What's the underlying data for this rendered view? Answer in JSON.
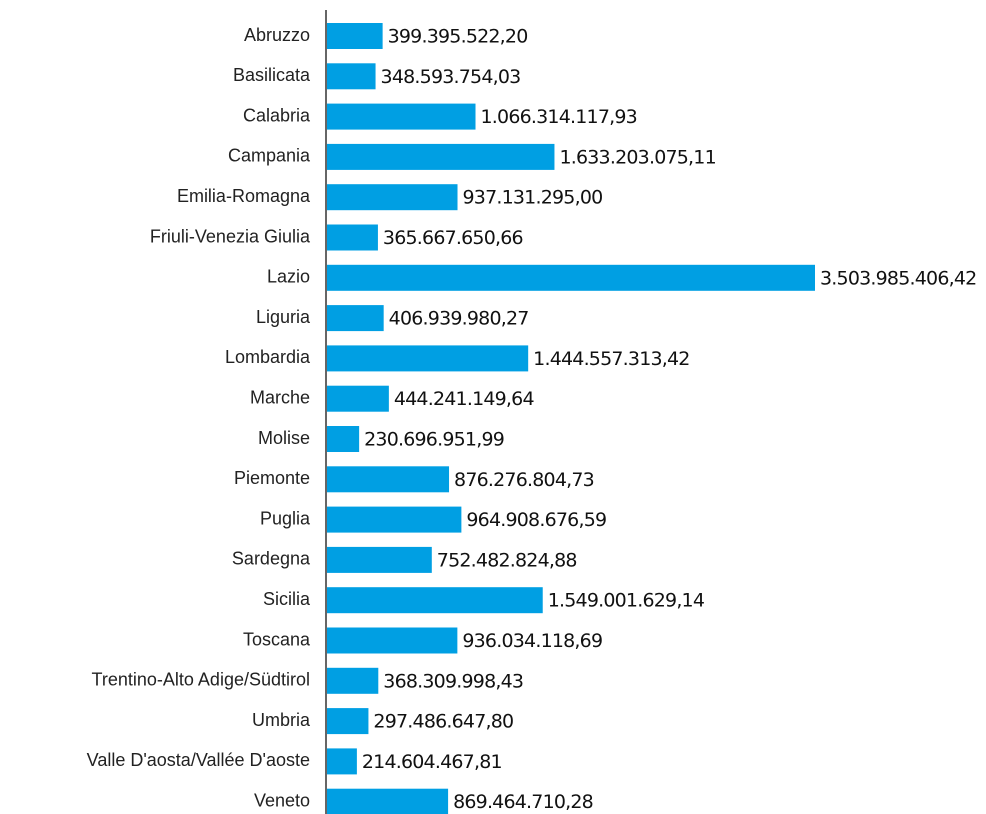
{
  "chart_data": {
    "type": "bar",
    "orientation": "horizontal",
    "color": "#009fe3",
    "categories": [
      "Abruzzo",
      "Basilicata",
      "Calabria",
      "Campania",
      "Emilia-Romagna",
      "Friuli-Venezia Giulia",
      "Lazio",
      "Liguria",
      "Lombardia",
      "Marche",
      "Molise",
      "Piemonte",
      "Puglia",
      "Sardegna",
      "Sicilia",
      "Toscana",
      "Trentino-Alto Adige/Südtirol",
      "Umbria",
      "Valle D'aosta/Vallée D'aoste",
      "Veneto"
    ],
    "values": [
      399395522.2,
      348593754.03,
      1066314117.93,
      1633203075.11,
      937131295.0,
      365667650.66,
      3503985406.42,
      406939980.27,
      1444557313.42,
      444241149.64,
      230696951.99,
      876276804.73,
      964908676.59,
      752482824.88,
      1549001629.14,
      936034118.69,
      368309998.43,
      297486647.8,
      214604467.81,
      869464710.28
    ],
    "value_labels": [
      "399.395.522,20",
      "348.593.754,03",
      "1.066.314.117,93",
      "1.633.203.075,11",
      "937.131.295,00",
      "365.667.650,66",
      "3.503.985.406,42",
      "406.939.980,27",
      "1.444.557.313,42",
      "444.241.149,64",
      "230.696.951,99",
      "876.276.804,73",
      "964.908.676,59",
      "752.482.824,88",
      "1.549.001.629,14",
      "936.034.118,69",
      "368.309.998,43",
      "297.486.647,80",
      "214.604.467,81",
      "869.464.710,28"
    ]
  }
}
